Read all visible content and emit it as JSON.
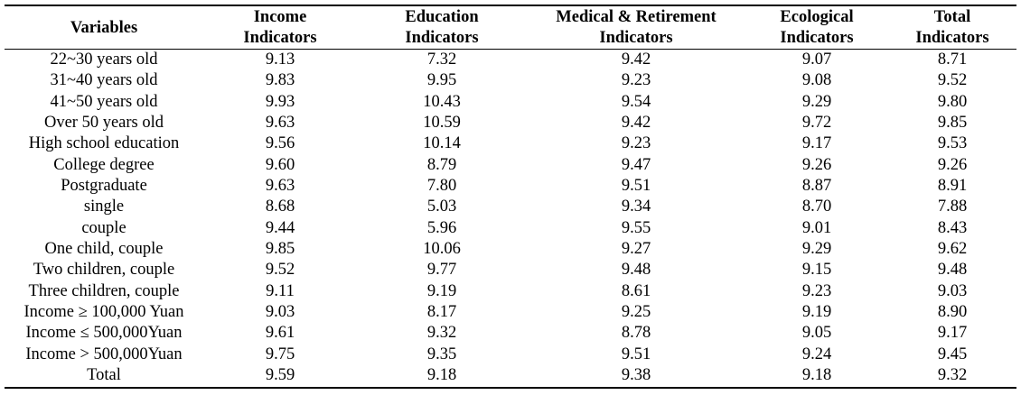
{
  "header": {
    "variables": "Variables",
    "income": [
      "Income",
      "Indicators"
    ],
    "education": [
      "Education",
      "Indicators"
    ],
    "medical": [
      "Medical & Retirement",
      "Indicators"
    ],
    "ecological": [
      "Ecological",
      "Indicators"
    ],
    "total": [
      "Total",
      "Indicators"
    ]
  },
  "rows": [
    {
      "variable": "22~30 years old",
      "income": "9.13",
      "education": "7.32",
      "medical": "9.42",
      "ecological": "9.07",
      "total": "8.71"
    },
    {
      "variable": "31~40 years old",
      "income": "9.83",
      "education": "9.95",
      "medical": "9.23",
      "ecological": "9.08",
      "total": "9.52"
    },
    {
      "variable": "41~50 years old",
      "income": "9.93",
      "education": "10.43",
      "medical": "9.54",
      "ecological": "9.29",
      "total": "9.80"
    },
    {
      "variable": "Over 50 years old",
      "income": "9.63",
      "education": "10.59",
      "medical": "9.42",
      "ecological": "9.72",
      "total": "9.85"
    },
    {
      "variable": "High school education",
      "income": "9.56",
      "education": "10.14",
      "medical": "9.23",
      "ecological": "9.17",
      "total": "9.53"
    },
    {
      "variable": "College degree",
      "income": "9.60",
      "education": "8.79",
      "medical": "9.47",
      "ecological": "9.26",
      "total": "9.26"
    },
    {
      "variable": "Postgraduate",
      "income": "9.63",
      "education": "7.80",
      "medical": "9.51",
      "ecological": "8.87",
      "total": "8.91"
    },
    {
      "variable": "single",
      "income": "8.68",
      "education": "5.03",
      "medical": "9.34",
      "ecological": "8.70",
      "total": "7.88"
    },
    {
      "variable": "couple",
      "income": "9.44",
      "education": "5.96",
      "medical": "9.55",
      "ecological": "9.01",
      "total": "8.43"
    },
    {
      "variable": "One child, couple",
      "income": "9.85",
      "education": "10.06",
      "medical": "9.27",
      "ecological": "9.29",
      "total": "9.62"
    },
    {
      "variable": "Two children, couple",
      "income": "9.52",
      "education": "9.77",
      "medical": "9.48",
      "ecological": "9.15",
      "total": "9.48"
    },
    {
      "variable": "Three children, couple",
      "income": "9.11",
      "education": "9.19",
      "medical": "8.61",
      "ecological": "9.23",
      "total": "9.03"
    },
    {
      "variable": "Income ≥ 100,000 Yuan",
      "income": "9.03",
      "education": "8.17",
      "medical": "9.25",
      "ecological": "9.19",
      "total": "8.90"
    },
    {
      "variable": "Income ≤ 500,000Yuan",
      "income": "9.61",
      "education": "9.32",
      "medical": "8.78",
      "ecological": "9.05",
      "total": "9.17"
    },
    {
      "variable": "Income > 500,000Yuan",
      "income": "9.75",
      "education": "9.35",
      "medical": "9.51",
      "ecological": "9.24",
      "total": "9.45"
    },
    {
      "variable": "Total",
      "income": "9.59",
      "education": "9.18",
      "medical": "9.38",
      "ecological": "9.18",
      "total": "9.32"
    }
  ]
}
